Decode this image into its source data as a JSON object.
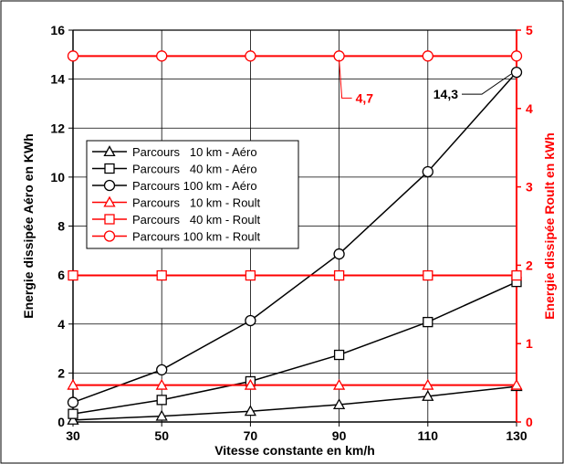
{
  "chart_data": {
    "type": "line",
    "xlabel": "Vitesse constante en km/h",
    "ylabel": "Energie dissipée Aéro en KWh",
    "y2label": "Energie dissipée Roult en kWh",
    "x": [
      30,
      50,
      70,
      90,
      110,
      130
    ],
    "xticks": [
      "30",
      "50",
      "70",
      "90",
      "110",
      "130"
    ],
    "ylim": [
      0,
      16
    ],
    "yticks": [
      "0",
      "2",
      "4",
      "6",
      "8",
      "10",
      "12",
      "14",
      "16"
    ],
    "y2lim": [
      0,
      5
    ],
    "y2ticks": [
      "0",
      "1",
      "2",
      "3",
      "4",
      "5"
    ],
    "grid": true,
    "legend_position": "center-left",
    "colors": {
      "aero": "#000000",
      "roult": "#ff0000"
    },
    "series": [
      {
        "name": "Parcours   10 km - Aéro",
        "axis": "left",
        "marker": "triangle",
        "color": "#000000",
        "values": [
          0.08,
          0.24,
          0.44,
          0.71,
          1.05,
          1.45
        ]
      },
      {
        "name": "Parcours   40 km - Aéro",
        "axis": "left",
        "marker": "square",
        "color": "#000000",
        "values": [
          0.33,
          0.9,
          1.66,
          2.74,
          4.08,
          5.72
        ]
      },
      {
        "name": "Parcours 100 km - Aéro",
        "axis": "left",
        "marker": "circle",
        "color": "#000000",
        "values": [
          0.8,
          2.13,
          4.14,
          6.86,
          10.22,
          14.28
        ]
      },
      {
        "name": "Parcours   10 km - Roult",
        "axis": "right",
        "marker": "triangle",
        "color": "#ff0000",
        "values": [
          0.47,
          0.47,
          0.47,
          0.47,
          0.47,
          0.47
        ]
      },
      {
        "name": "Parcours   40 km - Roult",
        "axis": "right",
        "marker": "square",
        "color": "#ff0000",
        "values": [
          1.87,
          1.87,
          1.87,
          1.87,
          1.87,
          1.87
        ]
      },
      {
        "name": "Parcours 100 km - Roult",
        "axis": "right",
        "marker": "circle",
        "color": "#ff0000",
        "values": [
          4.67,
          4.67,
          4.67,
          4.67,
          4.67,
          4.67
        ]
      }
    ],
    "annotations": [
      {
        "text": "4,7",
        "color": "#ff0000",
        "series_index": 5,
        "point_index": 3
      },
      {
        "text": "14,3",
        "color": "#000000",
        "series_index": 2,
        "point_index": 5
      }
    ]
  }
}
